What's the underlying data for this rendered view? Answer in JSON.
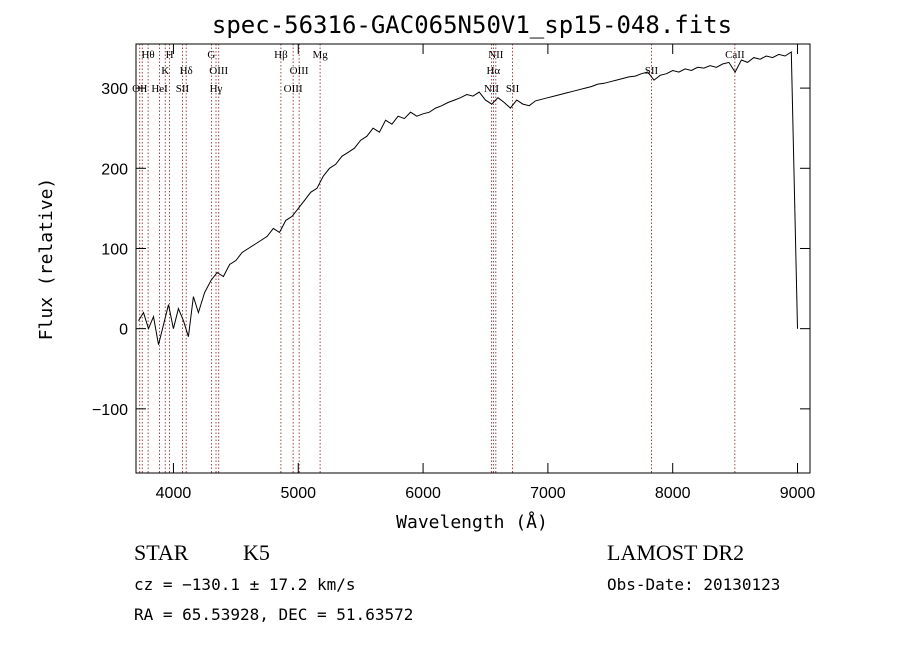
{
  "chart_data": {
    "type": "line",
    "title": "spec-56316-GAC065N50V1_sp15-048.fits",
    "xlabel": "Wavelength (Å)",
    "ylabel": "Flux (relative)",
    "xlim": [
      3700,
      9100
    ],
    "ylim": [
      -180,
      355
    ],
    "xticks": [
      4000,
      5000,
      6000,
      7000,
      8000,
      9000
    ],
    "xtick_labels": [
      "4000",
      "5000",
      "6000",
      "7000",
      "8000",
      "9000"
    ],
    "yticks": [
      -100,
      0,
      100,
      200,
      300
    ],
    "ytick_labels": [
      "−100",
      "0",
      "100",
      "200",
      "300"
    ],
    "grid": false,
    "series": [
      {
        "x": [
          3720,
          3760,
          3800,
          3840,
          3880,
          3920,
          3960,
          4000,
          4040,
          4080,
          4120,
          4160,
          4200,
          4250,
          4300,
          4350,
          4400,
          4450,
          4500,
          4550,
          4600,
          4650,
          4700,
          4750,
          4800,
          4850,
          4900,
          4950,
          5000,
          5050,
          5100,
          5150,
          5200,
          5250,
          5300,
          5350,
          5400,
          5450,
          5500,
          5550,
          5600,
          5650,
          5700,
          5750,
          5800,
          5850,
          5900,
          5950,
          6000,
          6050,
          6100,
          6150,
          6200,
          6250,
          6300,
          6350,
          6400,
          6450,
          6500,
          6550,
          6600,
          6650,
          6700,
          6750,
          6800,
          6850,
          6900,
          6950,
          7000,
          7050,
          7100,
          7150,
          7200,
          7250,
          7300,
          7350,
          7400,
          7450,
          7500,
          7550,
          7600,
          7650,
          7700,
          7750,
          7800,
          7850,
          7900,
          7950,
          8000,
          8050,
          8100,
          8150,
          8200,
          8250,
          8300,
          8350,
          8400,
          8450,
          8500,
          8550,
          8600,
          8650,
          8700,
          8750,
          8800,
          8850,
          8900,
          8950,
          9000
        ],
        "y": [
          10,
          20,
          0,
          15,
          -20,
          5,
          30,
          0,
          25,
          10,
          -10,
          40,
          20,
          45,
          60,
          70,
          65,
          80,
          85,
          95,
          100,
          105,
          110,
          115,
          125,
          120,
          135,
          140,
          150,
          160,
          170,
          175,
          190,
          200,
          205,
          215,
          220,
          225,
          235,
          240,
          250,
          245,
          260,
          255,
          265,
          262,
          270,
          265,
          268,
          270,
          275,
          278,
          282,
          285,
          288,
          292,
          290,
          295,
          285,
          280,
          288,
          282,
          275,
          285,
          280,
          278,
          284,
          286,
          288,
          290,
          292,
          294,
          296,
          298,
          300,
          302,
          305,
          306,
          308,
          310,
          312,
          314,
          315,
          318,
          320,
          310,
          316,
          318,
          322,
          320,
          324,
          322,
          326,
          325,
          328,
          326,
          330,
          332,
          320,
          335,
          332,
          338,
          336,
          340,
          338,
          342,
          340,
          345,
          0
        ]
      }
    ],
    "lines": [
      {
        "x": 3730,
        "label": "OII"
      },
      {
        "x": 3750,
        "label": ""
      },
      {
        "x": 3797,
        "label": "Hθ"
      },
      {
        "x": 3889,
        "label": "HeI"
      },
      {
        "x": 3934,
        "label": "K"
      },
      {
        "x": 3969,
        "label": "H"
      },
      {
        "x": 4072,
        "label": "SII"
      },
      {
        "x": 4102,
        "label": "Hδ"
      },
      {
        "x": 4304,
        "label": "G"
      },
      {
        "x": 4341,
        "label": "Hγ"
      },
      {
        "x": 4363,
        "label": "OIII"
      },
      {
        "x": 4861,
        "label": "Hβ"
      },
      {
        "x": 4959,
        "label": "OIII"
      },
      {
        "x": 5007,
        "label": "OIII"
      },
      {
        "x": 5175,
        "label": "Mg"
      },
      {
        "x": 6548,
        "label": "NII"
      },
      {
        "x": 6563,
        "label": "Hα"
      },
      {
        "x": 6583,
        "label": "NII"
      },
      {
        "x": 6717,
        "label": "SII"
      },
      {
        "x": 7830,
        "label": "SII"
      },
      {
        "x": 8498,
        "label": "CaII"
      }
    ]
  },
  "info": {
    "object_class": "STAR",
    "subclass": "K5",
    "redshift": "cz = −130.1 ± 17.2 km/s",
    "coords": "RA =  65.53928, DEC =  51.63572",
    "survey": "LAMOST DR2",
    "obs_date": "Obs-Date: 20130123"
  },
  "colors": {
    "spectrum": "#000000",
    "line_marker": "#8b1a1a",
    "axes": "#000000"
  }
}
